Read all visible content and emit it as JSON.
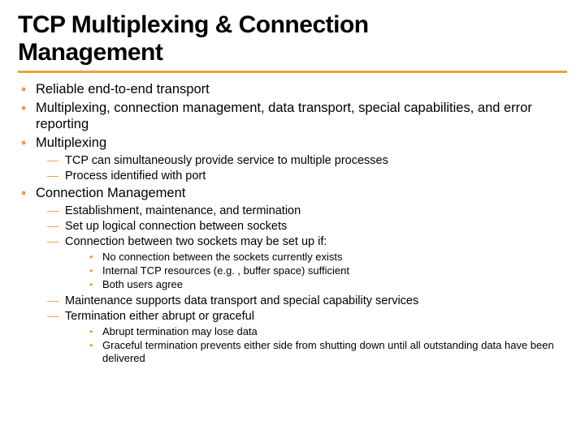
{
  "title_line1": "TCP Multiplexing & Connection",
  "title_line2": "Management",
  "colors": {
    "accent": "#e8a33d",
    "text": "#000000",
    "background": "#ffffff"
  },
  "typography": {
    "title_font": "Arial Black",
    "body_font": "Verdana",
    "title_size_pt": 30,
    "lvl1_size_pt": 16.5,
    "lvl2_size_pt": 14.5,
    "lvl3_size_pt": 13
  },
  "bullets": {
    "b1": "Reliable end-to-end transport",
    "b2": "Multiplexing, connection management, data transport, special capabilities, and error reporting",
    "b3": "Multiplexing",
    "b3_sub": {
      "s1": "TCP can simultaneously provide service to multiple processes",
      "s2": "Process identified with port"
    },
    "b4": "Connection Management",
    "b4_sub": {
      "s1": "Establishment, maintenance, and termination",
      "s2": "Set up logical connection between sockets",
      "s3": "Connection between two sockets may be set up if:",
      "s3_sub": {
        "t1": "No connection between the sockets currently exists",
        "t2": "Internal TCP resources (e.g. , buffer space) sufficient",
        "t3": "Both users agree"
      },
      "s4": "Maintenance supports data transport and special capability services",
      "s5": "Termination either abrupt or graceful",
      "s5_sub": {
        "t1": "Abrupt termination may lose data",
        "t2": "Graceful termination prevents either side from shutting down until all outstanding data have been delivered"
      }
    }
  }
}
